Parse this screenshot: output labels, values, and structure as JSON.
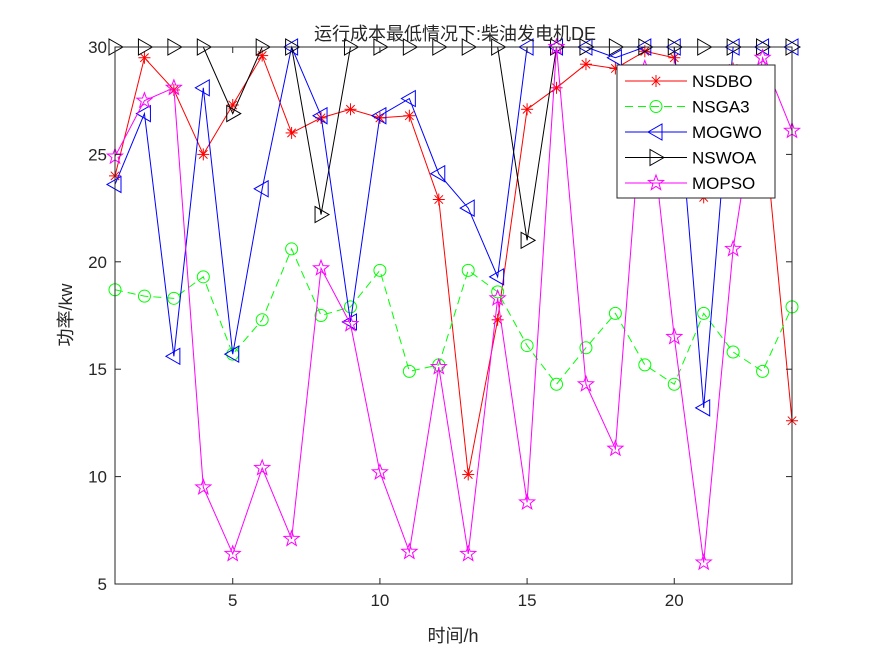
{
  "chart_data": {
    "type": "line",
    "title": "运行成本最低情况下:柴油发电机DE",
    "xlabel": "时间/h",
    "ylabel": "功率/kw",
    "xlim": [
      1,
      24
    ],
    "ylim": [
      5,
      30
    ],
    "xticks": [
      5,
      10,
      15,
      20
    ],
    "yticks": [
      5,
      10,
      15,
      20,
      25,
      30
    ],
    "legend_position": "top-right",
    "x": [
      1,
      2,
      3,
      4,
      5,
      6,
      7,
      8,
      9,
      10,
      11,
      12,
      13,
      14,
      15,
      16,
      17,
      18,
      19,
      20,
      21,
      22,
      23,
      24
    ],
    "series": [
      {
        "name": "NSDBO",
        "color": "#ff0000",
        "marker": "asterisk",
        "dash": false,
        "values": [
          24.0,
          29.5,
          28.0,
          25.0,
          27.3,
          29.6,
          26.0,
          26.7,
          27.1,
          26.7,
          26.8,
          22.9,
          10.1,
          17.3,
          27.1,
          28.1,
          29.2,
          29.0,
          29.8,
          29.5,
          23.0,
          29.0,
          27.0,
          12.6
        ]
      },
      {
        "name": "NSGA3",
        "color": "#00ff00",
        "marker": "circle",
        "dash": true,
        "values": [
          18.7,
          18.4,
          18.3,
          19.3,
          15.7,
          17.3,
          20.6,
          17.5,
          17.9,
          19.6,
          14.9,
          15.2,
          19.6,
          18.6,
          16.1,
          14.3,
          16.0,
          17.6,
          15.2,
          14.3,
          17.6,
          15.8,
          14.9,
          17.9
        ]
      },
      {
        "name": "MOGWO",
        "color": "#0000ff",
        "marker": "triangle-left",
        "dash": false,
        "values": [
          23.6,
          26.9,
          15.6,
          28.1,
          15.7,
          23.4,
          30.0,
          26.8,
          17.2,
          26.8,
          27.6,
          24.1,
          22.5,
          19.3,
          30.0,
          30.0,
          30.0,
          29.5,
          30.0,
          30.0,
          13.2,
          30.0,
          30.0,
          30.0
        ]
      },
      {
        "name": "NSWOA",
        "color": "#000000",
        "marker": "triangle-right",
        "dash": false,
        "values": [
          30,
          30,
          30,
          30,
          26.9,
          30,
          30,
          22.2,
          30,
          30,
          30,
          30,
          30,
          30,
          21.0,
          30,
          30,
          30,
          30,
          30,
          30,
          30,
          30,
          30
        ]
      },
      {
        "name": "MOPSO",
        "color": "#ff00ff",
        "marker": "pentagram",
        "dash": false,
        "values": [
          24.9,
          27.5,
          28.1,
          9.5,
          6.4,
          10.4,
          7.1,
          19.7,
          17.1,
          10.2,
          6.5,
          15.1,
          6.4,
          18.3,
          8.8,
          30.0,
          14.3,
          11.3,
          29.0,
          16.5,
          6.0,
          20.6,
          29.5,
          26.1
        ]
      }
    ]
  }
}
